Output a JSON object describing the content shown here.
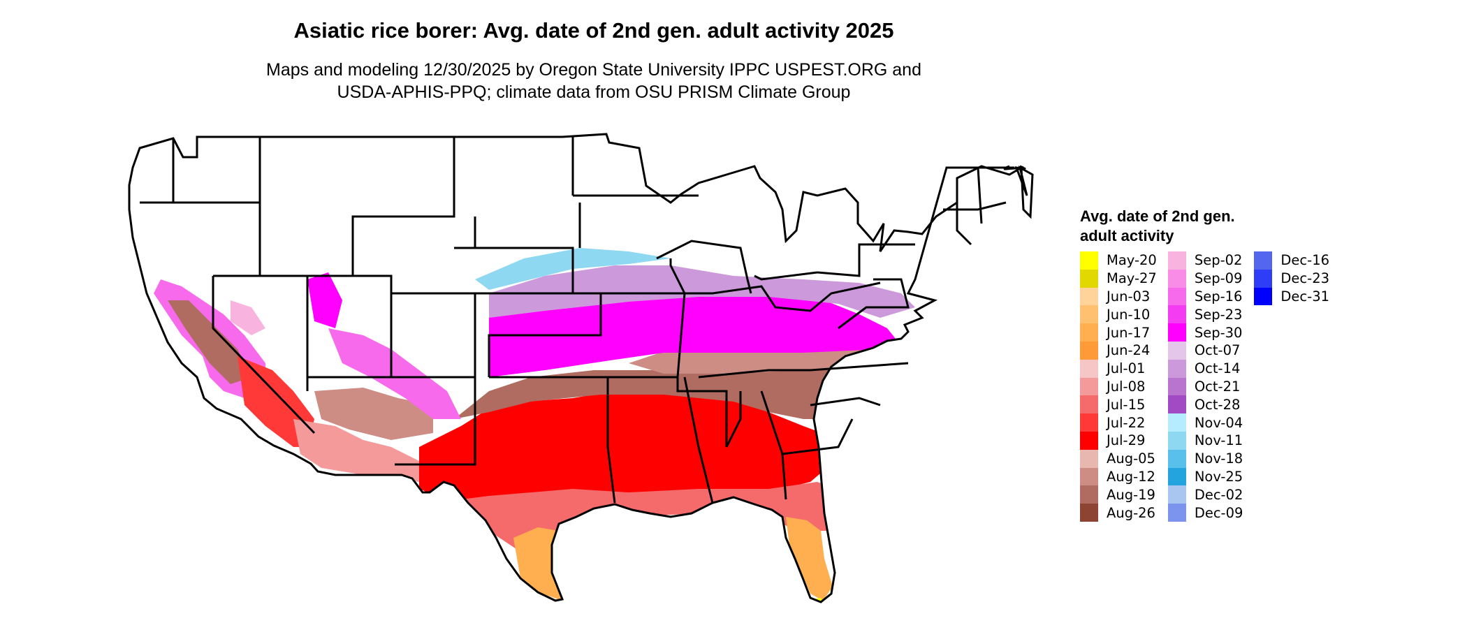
{
  "header": {
    "title": "Asiatic rice borer: Avg. date of 2nd gen. adult activity 2025",
    "subtitle_line1": "Maps and modeling 12/30/2025 by Oregon State University IPPC USPEST.ORG and",
    "subtitle_line2": "USDA-APHIS-PPQ; climate data from OSU PRISM Climate Group"
  },
  "legend": {
    "title": "Avg. date of 2nd gen. adult activity",
    "columns": [
      [
        {
          "label": "May-20",
          "color": "#FFFF00"
        },
        {
          "label": "May-27",
          "color": "#E0D800"
        },
        {
          "label": "Jun-03",
          "color": "#FFD39A"
        },
        {
          "label": "Jun-10",
          "color": "#FFC070"
        },
        {
          "label": "Jun-17",
          "color": "#FFAE50"
        },
        {
          "label": "Jun-24",
          "color": "#FF9A38"
        },
        {
          "label": "Jul-01",
          "color": "#F6C6C6"
        },
        {
          "label": "Jul-08",
          "color": "#F59A9A"
        },
        {
          "label": "Jul-15",
          "color": "#F56A6A"
        },
        {
          "label": "Jul-22",
          "color": "#FF3838"
        },
        {
          "label": "Jul-29",
          "color": "#FF0000"
        },
        {
          "label": "Aug-05",
          "color": "#E8B8B0"
        },
        {
          "label": "Aug-12",
          "color": "#CD8C84"
        },
        {
          "label": "Aug-19",
          "color": "#B06C60"
        },
        {
          "label": "Aug-26",
          "color": "#8E4432"
        }
      ],
      [
        {
          "label": "Sep-02",
          "color": "#F9B3DF"
        },
        {
          "label": "Sep-09",
          "color": "#F98CE6"
        },
        {
          "label": "Sep-16",
          "color": "#F76AEC"
        },
        {
          "label": "Sep-23",
          "color": "#F43DF2"
        },
        {
          "label": "Sep-30",
          "color": "#FF00FF"
        },
        {
          "label": "Oct-07",
          "color": "#E4C6EA"
        },
        {
          "label": "Oct-14",
          "color": "#CC9ADB"
        },
        {
          "label": "Oct-21",
          "color": "#B874CF"
        },
        {
          "label": "Oct-28",
          "color": "#A24AC4"
        },
        {
          "label": "Nov-04",
          "color": "#B6ECFF"
        },
        {
          "label": "Nov-11",
          "color": "#8ED8F2"
        },
        {
          "label": "Nov-18",
          "color": "#58C0EA"
        },
        {
          "label": "Nov-25",
          "color": "#24A4DE"
        },
        {
          "label": "Dec-02",
          "color": "#A8C6F0"
        },
        {
          "label": "Dec-09",
          "color": "#7C94EE"
        }
      ],
      [
        {
          "label": "Dec-16",
          "color": "#5566EE"
        },
        {
          "label": "Dec-23",
          "color": "#2E3EF6"
        },
        {
          "label": "Dec-31",
          "color": "#0000FF"
        }
      ]
    ]
  }
}
